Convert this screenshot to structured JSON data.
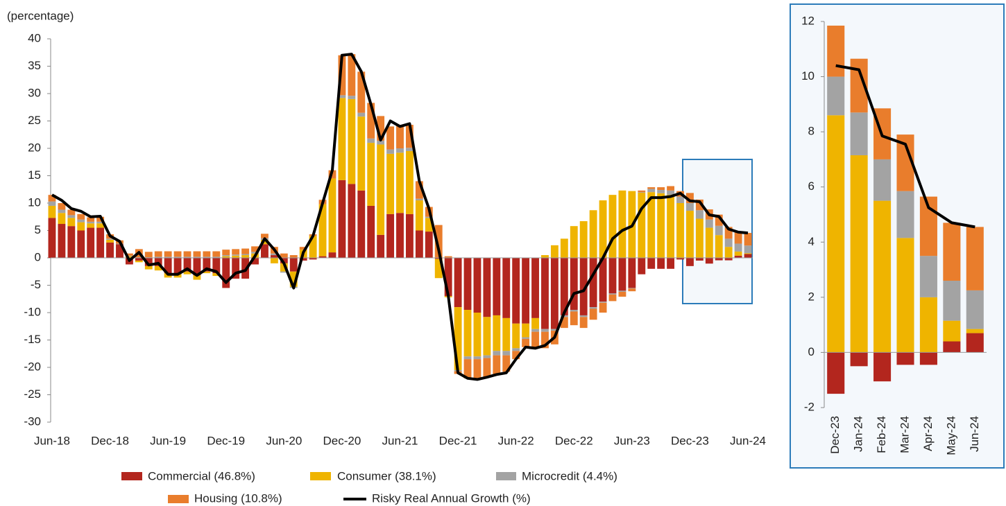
{
  "chart_data": [
    {
      "type": "bar",
      "stacked": true,
      "ylabel": "(percentage)",
      "categories": [
        "Jun-18",
        null,
        null,
        null,
        null,
        null,
        "Dec-18",
        null,
        null,
        null,
        null,
        null,
        "Jun-19",
        null,
        null,
        null,
        null,
        null,
        "Dec-19",
        null,
        null,
        null,
        null,
        null,
        "Jun-20",
        null,
        null,
        null,
        null,
        null,
        "Dec-20",
        null,
        null,
        null,
        null,
        null,
        "Jun-21",
        null,
        null,
        null,
        null,
        null,
        "Dec-21",
        null,
        null,
        null,
        null,
        null,
        "Jun-22",
        null,
        null,
        null,
        null,
        null,
        "Dec-22",
        null,
        null,
        null,
        null,
        null,
        "Jun-23",
        null,
        null,
        null,
        null,
        null,
        "Dec-23",
        null,
        null,
        null,
        null,
        null,
        "Jun-24"
      ],
      "ylim": [
        -30,
        40
      ],
      "yticks": [
        -30,
        -25,
        -20,
        -15,
        -10,
        -5,
        0,
        5,
        10,
        15,
        20,
        25,
        30,
        35,
        40
      ],
      "series": [
        {
          "name": "Commercial (46.8%)",
          "color": "#b3261e",
          "values": [
            7.3,
            6.2,
            5.8,
            5.0,
            5.5,
            5.5,
            2.8,
            2.5,
            -1.2,
            -0.5,
            -1.5,
            -1.5,
            -2.8,
            -2.8,
            -2.5,
            -3.2,
            -2.5,
            -2.8,
            -5.5,
            -3.8,
            -3.8,
            -1.2,
            2.5,
            0.5,
            -1.0,
            -2.5,
            -0.5,
            -0.3,
            0.3,
            1.0,
            14.2,
            13.5,
            12.3,
            9.5,
            4.2,
            8.0,
            8.2,
            8.0,
            5.0,
            4.8,
            -0.2,
            -7.0,
            -9.0,
            -9.5,
            -10.0,
            -10.8,
            -10.5,
            -11.0,
            -12.0,
            -12.0,
            -11.0,
            -13.0,
            -13.0,
            -10.5,
            -9.5,
            -10.5,
            -9.0,
            -8.0,
            -6.5,
            -6.0,
            -5.5,
            -3.0,
            -2.0,
            -2.0,
            -2.0,
            -0.3,
            -1.5,
            -0.5,
            -1.05,
            -0.45,
            -0.45,
            0.4,
            0.7
          ]
        },
        {
          "name": "Consumer (38.1%)",
          "color": "#efb400",
          "values": [
            2.2,
            2.0,
            1.5,
            1.5,
            0.8,
            0.8,
            0.5,
            0,
            0.3,
            -0.3,
            -0.6,
            -0.8,
            -0.8,
            -0.8,
            -0.5,
            -0.8,
            -0.3,
            -0.5,
            0.3,
            0.4,
            0.5,
            0.8,
            0.8,
            -1.0,
            -1.5,
            -2.8,
            1.5,
            4.0,
            9.5,
            13.5,
            15,
            15.5,
            13.5,
            11.5,
            16.5,
            11,
            11,
            11.5,
            5.5,
            2.5,
            -3.5,
            -0.2,
            -11.5,
            -8.5,
            -8,
            -7,
            -6.5,
            -6,
            -4.5,
            -2.5,
            -2,
            0.5,
            2.3,
            3.5,
            5.8,
            6.7,
            8.7,
            10.5,
            11.5,
            12.3,
            12.2,
            11.9,
            12.0,
            11.8,
            11.5,
            10,
            8.6,
            7.15,
            5.5,
            4.15,
            2.0,
            0.75,
            0.15
          ]
        },
        {
          "name": "Microcredit (4.4%)",
          "color": "#a3a3a3",
          "values": [
            0.8,
            0.6,
            0.5,
            0.5,
            0.3,
            0.3,
            0.2,
            0.1,
            0.1,
            0.1,
            0.1,
            0.2,
            0.2,
            0.2,
            0.2,
            0.2,
            0.2,
            0.2,
            0.2,
            0.2,
            0.2,
            0.3,
            0.3,
            0.3,
            -0.2,
            -0.2,
            0,
            0,
            0,
            0,
            0.5,
            0.6,
            0.7,
            0.8,
            0.7,
            0.8,
            0.8,
            0.6,
            0.3,
            0.2,
            0,
            0,
            -0.2,
            -0.5,
            -0.5,
            -0.5,
            -0.8,
            -0.8,
            -0.5,
            -0.3,
            -0.5,
            -0.5,
            -0.3,
            -0.3,
            -0.3,
            -0.3,
            -0.3,
            -0.2,
            -0.2,
            -0.2,
            -0.1,
            0.1,
            0.6,
            0.6,
            0.8,
            1.2,
            1.4,
            1.55,
            1.5,
            1.7,
            1.5,
            1.45,
            1.4
          ]
        },
        {
          "name": "Housing (10.8%)",
          "color": "#e97d2c",
          "values": [
            1.2,
            1.2,
            1.0,
            1.0,
            0.8,
            0.9,
            0.8,
            0.6,
            0.4,
            1.5,
            1.0,
            1.0,
            1.0,
            1.0,
            1.0,
            1.0,
            1.0,
            1.0,
            1.0,
            1.0,
            1.0,
            1.0,
            0.8,
            1.2,
            0.8,
            0.5,
            0.5,
            0.3,
            0.8,
            1.5,
            7.3,
            7.6,
            7.5,
            6.5,
            4.5,
            4.2,
            4.2,
            4.2,
            3.2,
            1.8,
            6,
            0.3,
            -0.5,
            -3.5,
            -3.7,
            -3.5,
            -3.5,
            -3,
            -1.5,
            -1.5,
            -3,
            -3,
            -2.5,
            -2,
            -2.5,
            -2,
            -2,
            -1.8,
            -1.2,
            -0.9,
            -0.5,
            0.3,
            0.3,
            0.5,
            0.8,
            1,
            1.85,
            1.95,
            1.85,
            2.05,
            2.15,
            2.1,
            2.3
          ]
        },
        {
          "name": "Risky Real Annual Growth (%)",
          "type": "line",
          "color": "#000000",
          "values": [
            11.5,
            10.5,
            9,
            8.5,
            7.5,
            7.6,
            4,
            3,
            -0.5,
            1,
            -1.3,
            -1,
            -3,
            -3,
            -2,
            -3.2,
            -2,
            -2.5,
            -4.5,
            -2.8,
            -2.3,
            0.3,
            3.5,
            1.5,
            -1,
            -5.5,
            1,
            4,
            10,
            16,
            37,
            37.2,
            34,
            28,
            21.5,
            25,
            24,
            24.5,
            14,
            9,
            1.5,
            -7,
            -21,
            -22,
            -22.2,
            -21.8,
            -21.3,
            -21,
            -18.5,
            -16.3,
            -16.5,
            -16,
            -14.5,
            -10,
            -6.5,
            -6,
            -3,
            0,
            3.5,
            5,
            5.8,
            9,
            11,
            11,
            11.2,
            11.8,
            10.4,
            10.25,
            7.85,
            7.55,
            5.25,
            4.7,
            4.55
          ]
        }
      ]
    },
    {
      "type": "bar",
      "stacked": true,
      "categories": [
        "Dec-23",
        "Jan-24",
        "Feb-24",
        "Mar-24",
        "Apr-24",
        "May-24",
        "Jun-24"
      ],
      "ylim": [
        -2,
        12
      ],
      "yticks": [
        -2,
        0,
        2,
        4,
        6,
        8,
        10,
        12
      ],
      "series": [
        {
          "color": "#b3261e",
          "values": [
            -1.5,
            -0.5,
            -1.05,
            -0.45,
            -0.45,
            0.4,
            0.7
          ]
        },
        {
          "color": "#efb400",
          "values": [
            8.6,
            7.15,
            5.5,
            4.15,
            2.0,
            0.75,
            0.15
          ]
        },
        {
          "color": "#a3a3a3",
          "values": [
            1.4,
            1.55,
            1.5,
            1.7,
            1.5,
            1.45,
            1.4
          ]
        },
        {
          "color": "#e97d2c",
          "values": [
            1.85,
            1.95,
            1.85,
            2.05,
            2.15,
            2.1,
            2.3
          ]
        },
        {
          "type": "line",
          "color": "#000000",
          "values": [
            10.4,
            10.25,
            7.85,
            7.55,
            5.25,
            4.7,
            4.55
          ]
        }
      ]
    }
  ]
}
